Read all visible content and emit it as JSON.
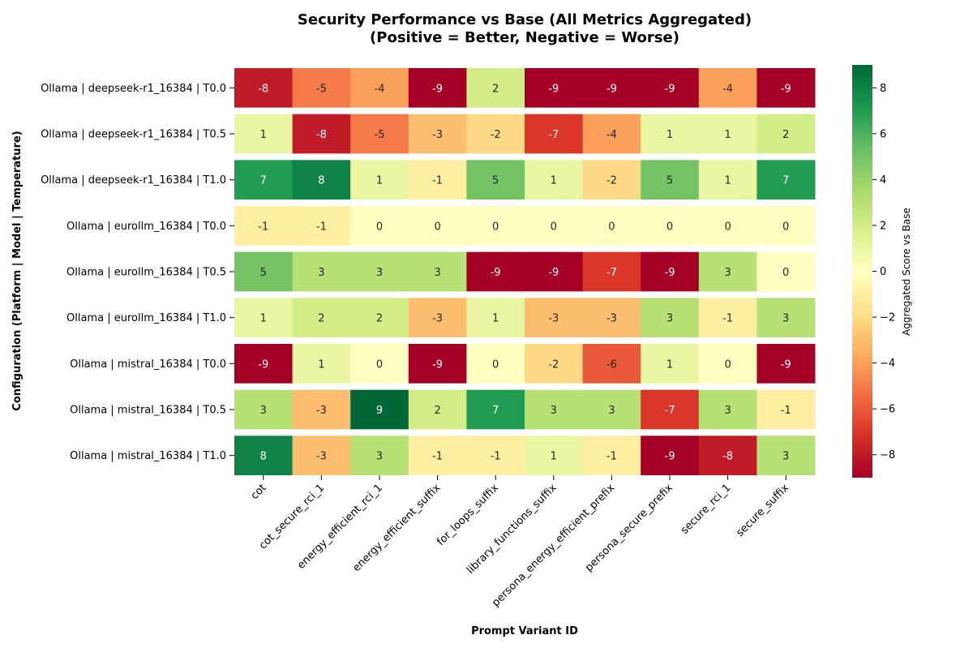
{
  "chart_data": {
    "type": "heatmap",
    "title": "Security Performance vs Base (All Metrics Aggregated)",
    "subtitle": "(Positive = Better, Negative = Worse)",
    "xlabel": "Prompt Variant ID",
    "ylabel": "Configuration (Platform | Model | Temperature)",
    "colorbar_label": "Aggregated Score vs Base",
    "colorbar_ticks": [
      8,
      6,
      4,
      2,
      0,
      -2,
      -4,
      -6,
      -8
    ],
    "color_range": [
      -9,
      9
    ],
    "colormap": "RdYlGn",
    "columns": [
      "cot",
      "cot_secure_rci_1",
      "energy_efficient_rci_1",
      "energy_efficient_suffix",
      "for_loops_suffix",
      "library_functions_suffix",
      "persona_energy_efficient_prefix",
      "persona_secure_prefix",
      "secure_rci_1",
      "secure_suffix"
    ],
    "rows": [
      "Ollama | deepseek-r1_16384 | T0.0",
      "Ollama | deepseek-r1_16384 | T0.5",
      "Ollama | deepseek-r1_16384 | T1.0",
      "Ollama | eurollm_16384 | T0.0",
      "Ollama | eurollm_16384 | T0.5",
      "Ollama | eurollm_16384 | T1.0",
      "Ollama | mistral_16384 | T0.0",
      "Ollama | mistral_16384 | T0.5",
      "Ollama | mistral_16384 | T1.0"
    ],
    "values": [
      [
        -8,
        -5,
        -4,
        -9,
        2,
        -9,
        -9,
        -9,
        -4,
        -9
      ],
      [
        1,
        -8,
        -5,
        -3,
        -2,
        -7,
        -4,
        1,
        1,
        2
      ],
      [
        7,
        8,
        1,
        -1,
        5,
        1,
        -2,
        5,
        1,
        7
      ],
      [
        -1,
        -1,
        0,
        0,
        0,
        0,
        0,
        0,
        0,
        0
      ],
      [
        5,
        3,
        3,
        3,
        -9,
        -9,
        -7,
        -9,
        3,
        0
      ],
      [
        1,
        2,
        2,
        -3,
        1,
        -3,
        -3,
        3,
        -1,
        3
      ],
      [
        -9,
        1,
        0,
        -9,
        0,
        -2,
        -6,
        1,
        0,
        -9
      ],
      [
        3,
        -3,
        9,
        2,
        7,
        3,
        3,
        -7,
        3,
        -1
      ],
      [
        8,
        -3,
        3,
        -1,
        -1,
        1,
        -1,
        -9,
        -8,
        3
      ]
    ]
  }
}
